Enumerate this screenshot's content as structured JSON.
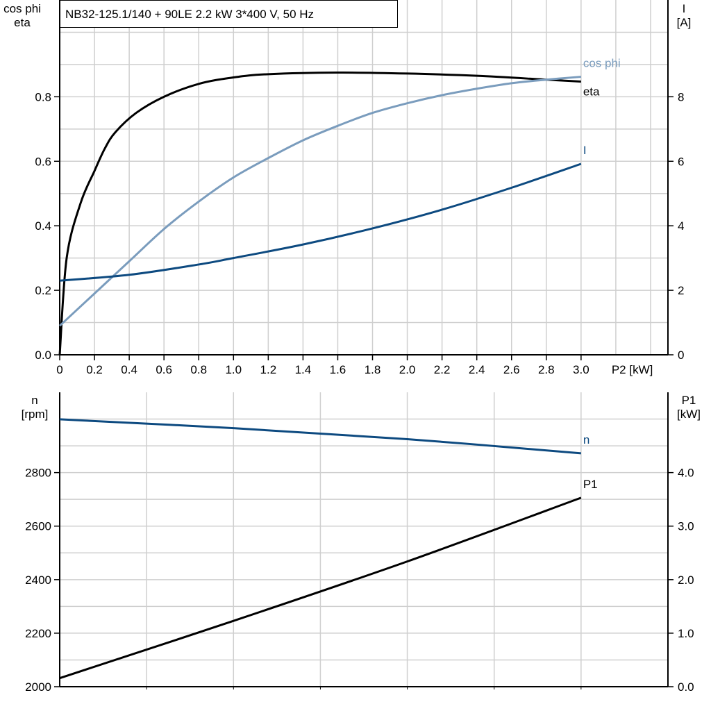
{
  "title": "NB32-125.1/140 + 90LE   2.2 kW   3*400 V, 50 Hz",
  "chart_data": [
    {
      "type": "line",
      "xlabel": "P2 [kW]",
      "xlim": [
        0,
        3.5
      ],
      "xticks": [
        "0",
        "0.2",
        "0.4",
        "0.6",
        "0.8",
        "1.0",
        "1.2",
        "1.4",
        "1.6",
        "1.8",
        "2.0",
        "2.2",
        "2.4",
        "2.6",
        "2.8",
        "3.0"
      ],
      "ylabel_left": [
        "cos phi",
        "eta"
      ],
      "ylim_left": [
        0,
        1.1
      ],
      "yticks_left": [
        "0.0",
        "0.2",
        "0.4",
        "0.6",
        "0.8"
      ],
      "ylabel_right": [
        "I",
        "[A]"
      ],
      "ylim_right": [
        0,
        11
      ],
      "yticks_right": [
        "0",
        "2",
        "4",
        "6",
        "8"
      ],
      "grid": true,
      "series": [
        {
          "name": "eta",
          "axis": "left",
          "color": "#000000",
          "x": [
            0,
            0.04,
            0.12,
            0.2,
            0.26,
            0.32,
            0.44,
            0.6,
            0.8,
            1.0,
            1.2,
            1.6,
            2.0,
            2.4,
            2.8,
            3.0
          ],
          "y": [
            0,
            0.3,
            0.47,
            0.57,
            0.64,
            0.69,
            0.75,
            0.8,
            0.84,
            0.86,
            0.87,
            0.875,
            0.872,
            0.865,
            0.853,
            0.847
          ]
        },
        {
          "name": "cos phi",
          "axis": "left",
          "color": "#7a9cbd",
          "x": [
            0,
            0.2,
            0.4,
            0.6,
            0.8,
            1.0,
            1.2,
            1.4,
            1.6,
            1.8,
            2.0,
            2.2,
            2.4,
            2.6,
            2.8,
            3.0
          ],
          "y": [
            0.09,
            0.19,
            0.29,
            0.39,
            0.475,
            0.55,
            0.61,
            0.665,
            0.71,
            0.75,
            0.78,
            0.805,
            0.825,
            0.842,
            0.853,
            0.862
          ]
        },
        {
          "name": "I",
          "axis": "right",
          "color": "#0d4a80",
          "x": [
            0,
            0.4,
            0.8,
            1.0,
            1.4,
            1.8,
            2.2,
            2.6,
            3.0
          ],
          "y": [
            2.3,
            2.48,
            2.8,
            3.0,
            3.42,
            3.92,
            4.5,
            5.18,
            5.92
          ]
        }
      ]
    },
    {
      "type": "line",
      "xlim": [
        0,
        3.5
      ],
      "ylabel_left": [
        "n",
        "[rpm]"
      ],
      "ylim_left": [
        2000,
        3100
      ],
      "yticks_left": [
        "2000",
        "2200",
        "2400",
        "2600",
        "2800"
      ],
      "ylabel_right": [
        "P1",
        "[kW]"
      ],
      "ylim_right": [
        0,
        5.5
      ],
      "yticks_right": [
        "0.0",
        "1.0",
        "2.0",
        "3.0",
        "4.0"
      ],
      "grid": true,
      "series": [
        {
          "name": "n",
          "axis": "left",
          "color": "#0d4a80",
          "x": [
            0,
            1.0,
            2.0,
            3.0
          ],
          "y": [
            2999,
            2966,
            2925,
            2872
          ]
        },
        {
          "name": "P1",
          "axis": "right",
          "color": "#000000",
          "x": [
            0,
            1.0,
            2.0,
            3.0
          ],
          "y": [
            0.16,
            1.23,
            2.34,
            3.53
          ]
        }
      ]
    }
  ]
}
